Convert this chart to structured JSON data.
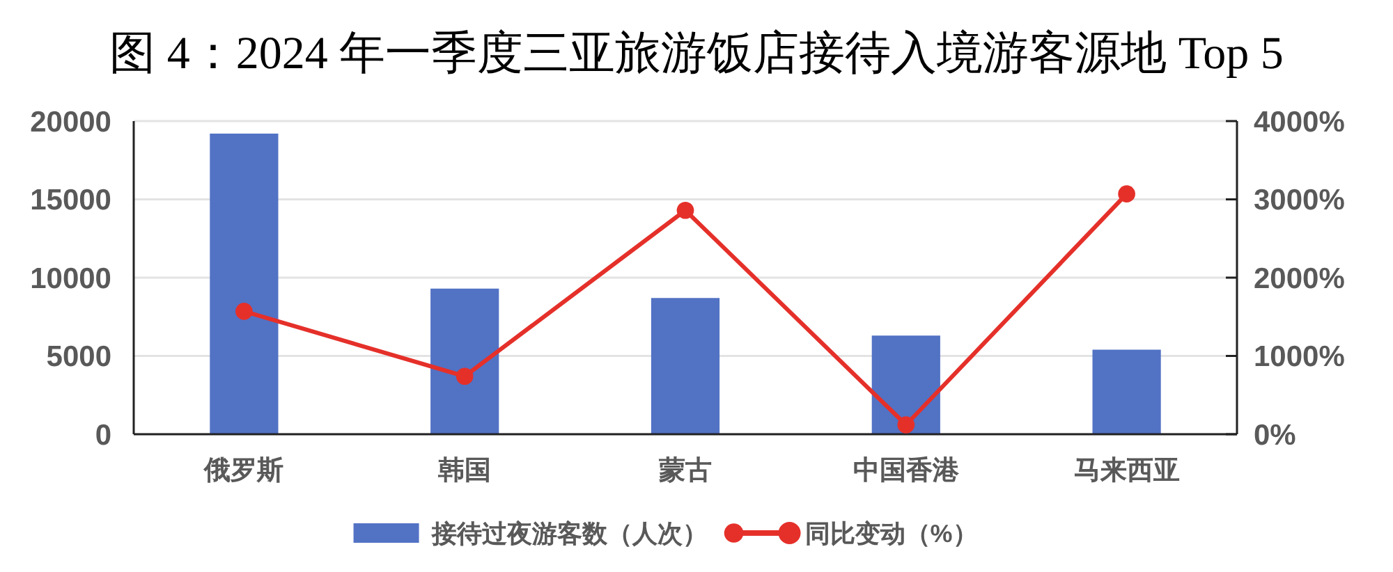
{
  "chart_data": {
    "type": "bar",
    "title": "图 4：2024 年一季度三亚旅游饭店接待入境游客源地 Top 5",
    "categories": [
      "俄罗斯",
      "韩国",
      "蒙古",
      "中国香港",
      "马来西亚"
    ],
    "series": [
      {
        "name": "接待过夜游客数（人次）",
        "color": "#5272c4",
        "values": [
          19200,
          9300,
          8700,
          6300,
          5400
        ]
      },
      {
        "name": "同比变动（%）",
        "type": "line",
        "axis": "y2",
        "color": "#e5302a",
        "values": [
          1570,
          740,
          2860,
          120,
          3070
        ]
      }
    ],
    "ylim": [
      0,
      20000
    ],
    "yticks": [
      0,
      5000,
      10000,
      15000,
      20000
    ],
    "y2lim": [
      0,
      4000
    ],
    "y2ticks": [
      {
        "value": 0,
        "label": "0%"
      },
      {
        "value": 1000,
        "label": "1000%"
      },
      {
        "value": 2000,
        "label": "2000%"
      },
      {
        "value": 3000,
        "label": "3000%"
      },
      {
        "value": 4000,
        "label": "4000%"
      }
    ],
    "grid": "y",
    "legend": "bottom",
    "marker": "circle"
  }
}
